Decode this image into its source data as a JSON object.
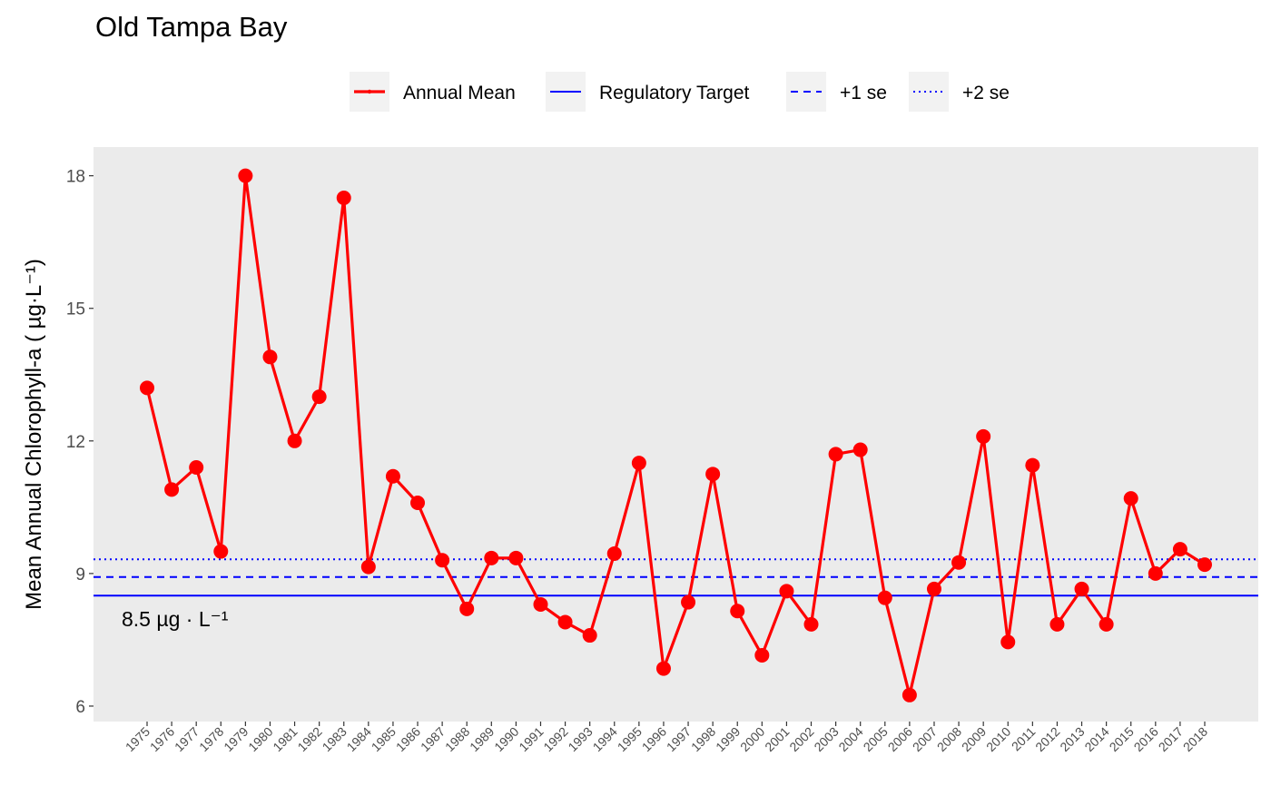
{
  "chart_data": {
    "type": "line",
    "title": "Old Tampa Bay",
    "xlabel": "",
    "ylabel": "Mean Annual Chlorophyll-a ( µg·L⁻¹)",
    "categories": [
      "1975",
      "1976",
      "1977",
      "1978",
      "1979",
      "1980",
      "1981",
      "1982",
      "1983",
      "1984",
      "1985",
      "1986",
      "1987",
      "1988",
      "1989",
      "1990",
      "1991",
      "1992",
      "1993",
      "1994",
      "1995",
      "1996",
      "1997",
      "1998",
      "1999",
      "2000",
      "2001",
      "2002",
      "2003",
      "2004",
      "2005",
      "2006",
      "2007",
      "2008",
      "2009",
      "2010",
      "2011",
      "2012",
      "2013",
      "2014",
      "2015",
      "2016",
      "2017",
      "2018"
    ],
    "series": [
      {
        "name": "Annual Mean",
        "color": "#ff0000",
        "values": [
          13.2,
          10.9,
          11.4,
          9.5,
          18.0,
          13.9,
          12.0,
          13.0,
          17.5,
          9.15,
          11.2,
          10.6,
          9.3,
          8.2,
          9.35,
          9.35,
          8.3,
          7.9,
          7.6,
          9.45,
          11.5,
          6.85,
          8.35,
          11.25,
          8.15,
          7.15,
          8.6,
          7.85,
          11.7,
          11.8,
          8.45,
          6.25,
          8.65,
          9.25,
          12.1,
          7.45,
          11.45,
          7.85,
          8.65,
          7.85,
          10.7,
          9.0,
          9.55,
          9.2
        ]
      }
    ],
    "reference_lines": [
      {
        "name": "Regulatory Target",
        "value": 8.5,
        "style": "solid",
        "color": "#0000ff"
      },
      {
        "name": "+1 se",
        "value": 8.92,
        "style": "dashed",
        "color": "#0000ff"
      },
      {
        "name": "+2 se",
        "value": 9.32,
        "style": "dotted",
        "color": "#0000ff"
      }
    ],
    "annotation": "8.5 µg · L⁻¹",
    "yticks": [
      6,
      9,
      12,
      15,
      18
    ],
    "ylim": [
      5.65,
      18.65
    ],
    "grid": false,
    "legend_position": "top",
    "legend": [
      "Annual Mean",
      "Regulatory Target",
      "+1 se",
      "+2 se"
    ],
    "panel_background": "#ebebeb"
  }
}
